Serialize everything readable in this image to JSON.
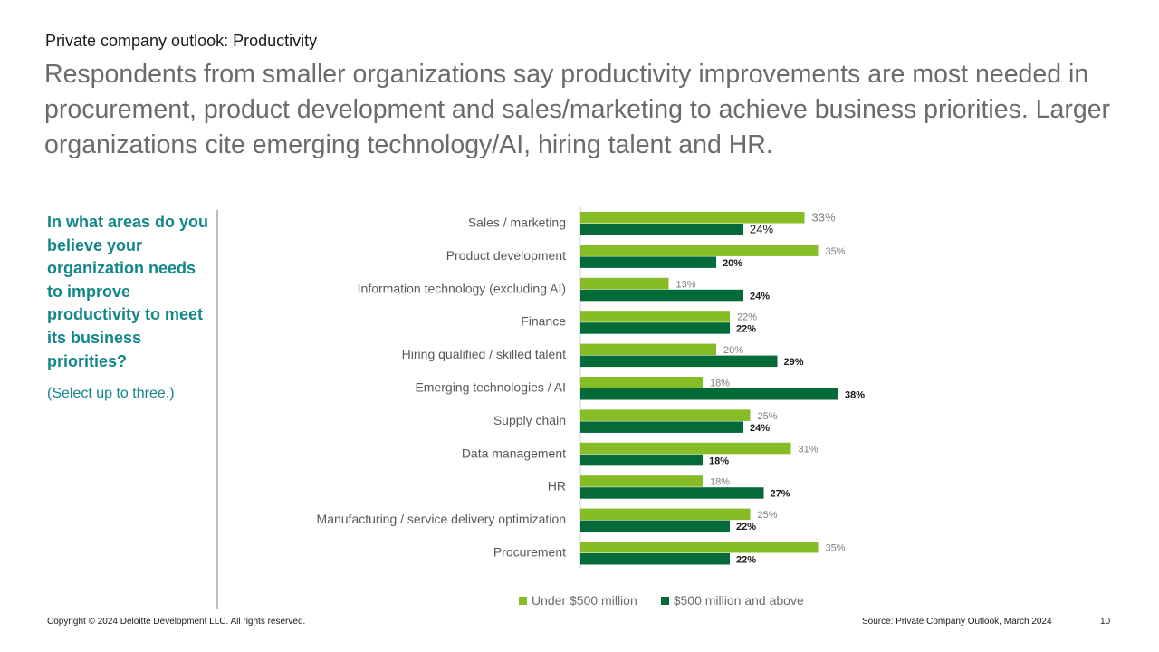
{
  "kicker": "Private company outlook: Productivity",
  "headline": "Respondents from smaller organizations say productivity improvements are most needed in procurement, product development and sales/marketing to achieve business priorities. Larger organizations cite emerging technology/AI, hiring talent and HR.",
  "question": "In what areas do you believe your organization needs to improve productivity to meet its business priorities?",
  "question_note": "(Select up to three.)",
  "colors": {
    "light_green": "#86bc25",
    "dark_green": "#046a38",
    "teal": "#13868a"
  },
  "chart_data": {
    "type": "bar",
    "orientation": "horizontal",
    "categories": [
      "Sales / marketing",
      "Product development",
      "Information technology (excluding AI)",
      "Finance",
      "Hiring qualified / skilled talent",
      "Emerging technologies / AI",
      "Supply chain",
      "Data management",
      "HR",
      "Manufacturing / service delivery optimization",
      "Procurement"
    ],
    "series": [
      {
        "name": "Under $500 million",
        "color": "#86bc25",
        "values": [
          33,
          35,
          13,
          22,
          20,
          18,
          25,
          31,
          18,
          25,
          35
        ]
      },
      {
        "name": "$500 million and above",
        "color": "#046a38",
        "values": [
          24,
          20,
          24,
          22,
          29,
          38,
          24,
          18,
          27,
          22,
          22
        ]
      }
    ],
    "value_suffix": "%",
    "xlim": [
      0,
      40
    ],
    "grid": false,
    "legend_position": "bottom"
  },
  "footer": {
    "copyright": "Copyright © 2024 Deloitte Development LLC. All rights reserved.",
    "source": "Source: Private Company Outlook, March 2024",
    "page": "10"
  }
}
